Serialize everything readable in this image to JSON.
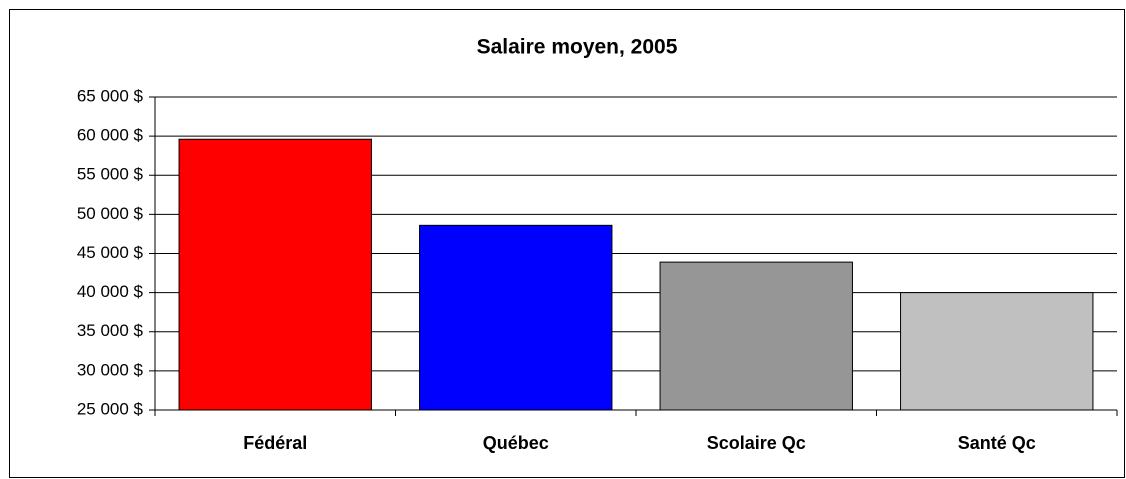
{
  "chart_data": {
    "type": "bar",
    "title": "Salaire moyen, 2005",
    "categories": [
      "Fédéral",
      "Québec",
      "Scolaire Qc",
      "Santé Qc"
    ],
    "values": [
      59600,
      48600,
      43900,
      40000
    ],
    "colors": [
      "#ff0000",
      "#0000ff",
      "#969696",
      "#c0c0c0"
    ],
    "ylim": [
      25000,
      65000
    ],
    "yticks": [
      {
        "value": 25000,
        "label": "25 000 $"
      },
      {
        "value": 30000,
        "label": "30 000 $"
      },
      {
        "value": 35000,
        "label": "35 000 $"
      },
      {
        "value": 40000,
        "label": "40 000 $"
      },
      {
        "value": 45000,
        "label": "45 000 $"
      },
      {
        "value": 50000,
        "label": "50 000 $"
      },
      {
        "value": 55000,
        "label": "55 000 $"
      },
      {
        "value": 60000,
        "label": "60 000 $"
      },
      {
        "value": 65000,
        "label": "65 000 $"
      }
    ],
    "grid": true
  }
}
